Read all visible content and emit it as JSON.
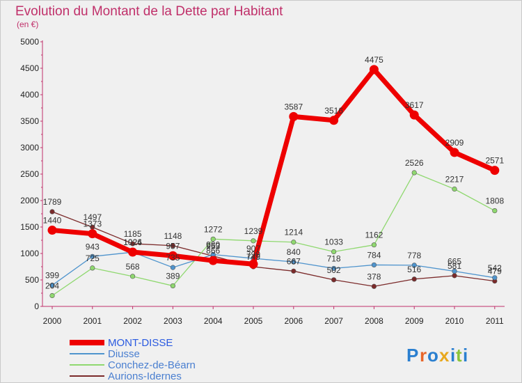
{
  "chart_data": {
    "type": "line",
    "title": "Evolution du Montant de la Dette par Habitant",
    "subtitle": "(en €)",
    "xlabel": "",
    "ylabel": "",
    "categories": [
      "2000",
      "2001",
      "2002",
      "2003",
      "2004",
      "2005",
      "2006",
      "2007",
      "2008",
      "2009",
      "2010",
      "2011"
    ],
    "ylim": [
      0,
      5000
    ],
    "yticks": [
      "0",
      "500",
      "1000",
      "1500",
      "2000",
      "2500",
      "3000",
      "3500",
      "4000",
      "4500",
      "5000"
    ],
    "grid": false,
    "legend_position": "bottom-left",
    "series": [
      {
        "name": "MONT-DISSE",
        "color": "#ee0000",
        "values": [
          1440,
          1373,
          1026,
          957,
          866,
          799,
          3587,
          3516,
          4475,
          3617,
          2909,
          2571
        ],
        "labels": [
          "1440",
          "1373",
          "1026",
          "957",
          "866",
          "799",
          "3587",
          "3516",
          "4475",
          "3617",
          "2909",
          "2571"
        ]
      },
      {
        "name": "Diusse",
        "color": "#4f94cd",
        "values": [
          399,
          943,
          1024,
          735,
          980,
          907,
          840,
          718,
          784,
          778,
          665,
          542
        ],
        "labels": [
          "399",
          "943",
          "1024",
          "735",
          "980",
          "907",
          "840",
          "718",
          "784",
          "778",
          "665",
          "542"
        ]
      },
      {
        "name": "Conchez-de-Béarn",
        "color": "#8fd86f",
        "values": [
          204,
          725,
          568,
          389,
          1272,
          1239,
          1214,
          1033,
          1162,
          2526,
          2217,
          1808
        ],
        "labels": [
          "204",
          "725",
          "568",
          "389",
          "1272",
          "1239",
          "1214",
          "1033",
          "1162",
          "2526",
          "2217",
          "1808"
        ]
      },
      {
        "name": "Aurions-Idernes",
        "color": "#7b2a2a",
        "values": [
          1789,
          1497,
          1185,
          1148,
          953,
          749,
          667,
          502,
          378,
          516,
          581,
          479
        ],
        "labels": [
          "1789",
          "1497",
          "1185",
          "1148",
          "953",
          "749",
          "667",
          "502",
          "378",
          "516",
          "581",
          "479"
        ]
      }
    ]
  },
  "logo": {
    "text": "Proxiti",
    "letters": [
      {
        "ch": "P",
        "color": "#2a7fd0"
      },
      {
        "ch": "r",
        "color": "#e8662a"
      },
      {
        "ch": "o",
        "color": "#2a7fd0"
      },
      {
        "ch": "x",
        "color": "#e8a81e"
      },
      {
        "ch": "i",
        "color": "#2a7fd0"
      },
      {
        "ch": "t",
        "color": "#8cc43a"
      },
      {
        "ch": "i",
        "color": "#2a7fd0"
      }
    ]
  }
}
